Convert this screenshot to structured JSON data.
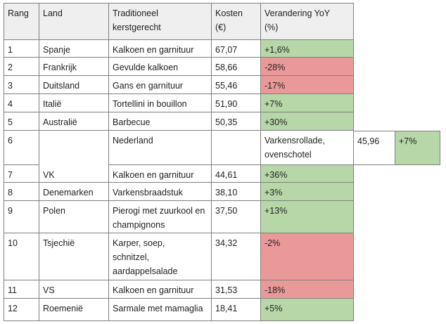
{
  "table": {
    "headers": {
      "rang": "Rang",
      "land": "Land",
      "gerecht_line1": "Traditioneel",
      "gerecht_line2": "kerstgerecht",
      "kosten_line1": "Kosten",
      "kosten_line2": "(€)",
      "verandering_line1": "Verandering YoY",
      "verandering_line2": "(%)"
    },
    "rows": [
      {
        "rang": "1",
        "land": "Spanje",
        "gerecht": "Kalkoen en garnituur",
        "kosten": "67,07",
        "verandering": "+1,6%",
        "status": "positive"
      },
      {
        "rang": "2",
        "land": "Frankrijk",
        "gerecht": "Gevulde kalkoen",
        "kosten": "58,66",
        "verandering": "-28%",
        "status": "negative"
      },
      {
        "rang": "3",
        "land": "Duitsland",
        "gerecht": "Gans en garnituur",
        "kosten": "55,46",
        "verandering": "-17%",
        "status": "negative"
      },
      {
        "rang": "4",
        "land": "Italië",
        "gerecht": "Tortellini in bouillon",
        "kosten": "51,90",
        "verandering": "+7%",
        "status": "positive"
      },
      {
        "rang": "5",
        "land": "Australië",
        "gerecht": "Barbecue",
        "kosten": "50,35",
        "verandering": "+30%",
        "status": "positive"
      },
      {
        "rang": "6",
        "land": "",
        "gerecht": "Nederland",
        "kosten": "",
        "verandering": "Varkensrollade, ovenschotel",
        "extra_kosten": "45,96",
        "extra_verandering": "+7%",
        "status": "misaligned"
      },
      {
        "rang": "7",
        "land": "VK",
        "gerecht": "Kalkoen en garnituur",
        "kosten": "44,61",
        "verandering": "+36%",
        "status": "positive"
      },
      {
        "rang": "8",
        "land": "Denemarken",
        "gerecht": "Varkensbraadstuk",
        "kosten": "38,10",
        "verandering": "+3%",
        "status": "positive"
      },
      {
        "rang": "9",
        "land": "Polen",
        "gerecht": "Pierogi met zuurkool en champignons",
        "kosten": "37,50",
        "verandering": "+13%",
        "status": "positive"
      },
      {
        "rang": "10",
        "land": "Tsjechië",
        "gerecht": "Karper, soep, schnitzel, aardappelsalade",
        "kosten": "34,32",
        "verandering": "-2%",
        "status": "negative"
      },
      {
        "rang": "11",
        "land": "VS",
        "gerecht": "Kalkoen en garnituur",
        "kosten": "31,53",
        "verandering": "-18%",
        "status": "negative"
      },
      {
        "rang": "12",
        "land": "Roemenië",
        "gerecht": "Sarmale met mamaglia",
        "kosten": "18,41",
        "verandering": "+5%",
        "status": "positive"
      }
    ]
  },
  "colors": {
    "header_bg": "#efefef",
    "positive_bg": "#b7d7a8",
    "negative_bg": "#ea9999",
    "border": "#7f7f7f"
  }
}
